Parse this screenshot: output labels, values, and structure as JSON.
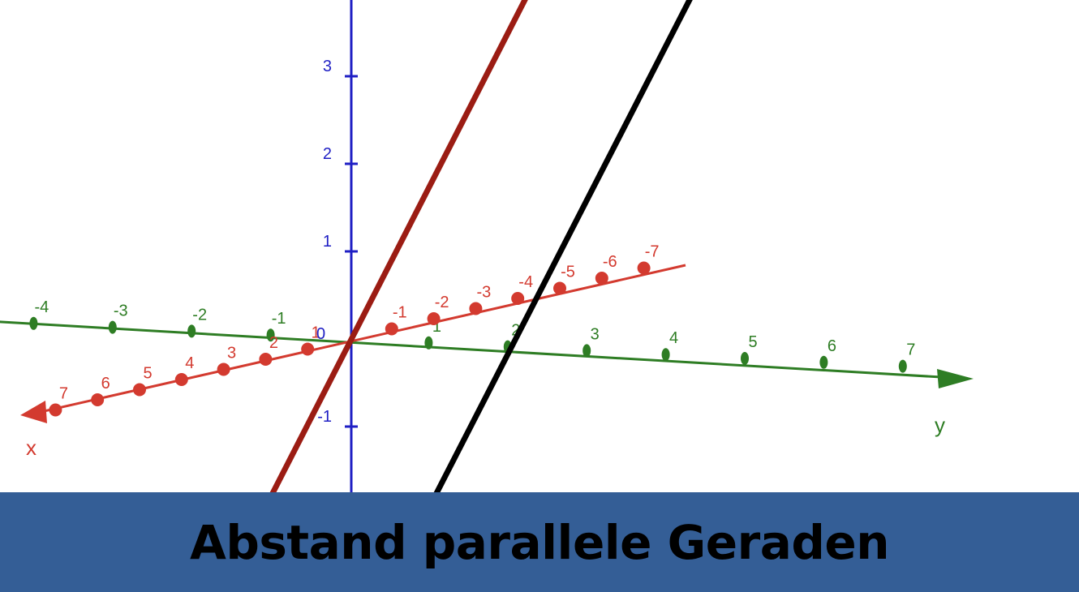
{
  "title": "Abstand parallele Geraden",
  "colors": {
    "x_axis": "#d33a2f",
    "y_axis": "#2e7d24",
    "z_axis": "#1f1fc4",
    "line_red": "#9b1c13",
    "line_black": "#000000",
    "banner": "#345e96"
  },
  "axes": {
    "x": {
      "name": "x",
      "ticks": [
        "7",
        "6",
        "5",
        "4",
        "3",
        "2",
        "1",
        "-1",
        "-2",
        "-3",
        "-4",
        "-5",
        "-6",
        "-7"
      ]
    },
    "y": {
      "name": "y",
      "ticks": [
        "-4",
        "-3",
        "-2",
        "-1",
        "1",
        "2",
        "3",
        "4",
        "5",
        "6",
        "7"
      ]
    },
    "z": {
      "ticks": [
        "3",
        "2",
        "1",
        "-1"
      ]
    },
    "origin_label": "0"
  }
}
